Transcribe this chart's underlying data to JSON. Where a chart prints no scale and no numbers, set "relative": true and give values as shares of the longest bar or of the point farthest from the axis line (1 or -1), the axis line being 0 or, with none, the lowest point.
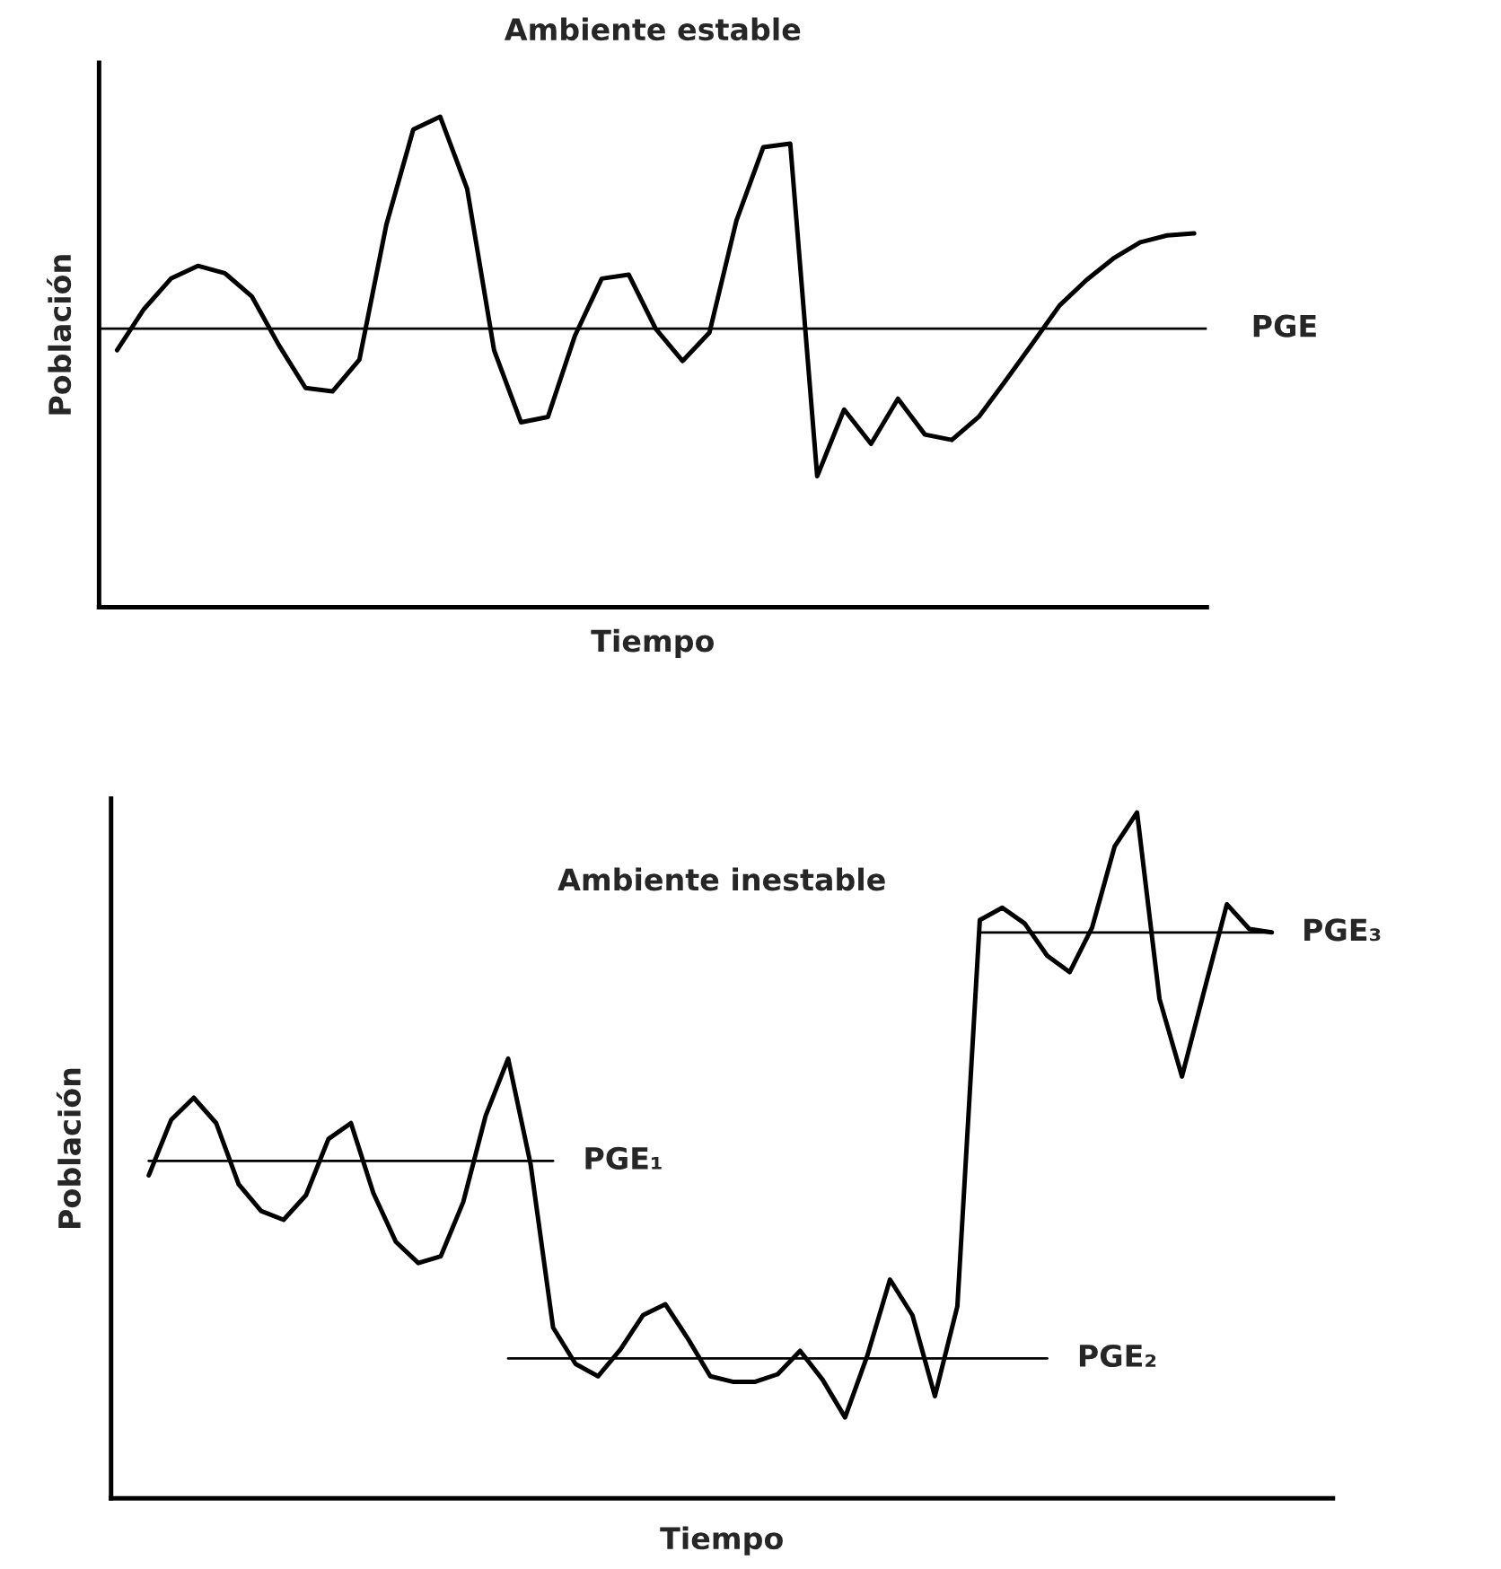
{
  "chart_data": [
    {
      "type": "line",
      "title": "Ambiente estable",
      "xlabel": "Tiempo",
      "ylabel": "Población",
      "relative": true,
      "legend": false,
      "categories": [
        null,
        null,
        null,
        null,
        null,
        null,
        null,
        null,
        null,
        null,
        null,
        null,
        null,
        null,
        null,
        null,
        null,
        null,
        null,
        null,
        null,
        null,
        null,
        null,
        null,
        null,
        null,
        null,
        null,
        null,
        null,
        null,
        null,
        null,
        null,
        null,
        null,
        null,
        null,
        null,
        null
      ],
      "series": [
        {
          "color": "#000000",
          "values": [
            0.524,
            0.608,
            0.67,
            0.696,
            0.681,
            0.634,
            0.535,
            0.447,
            0.44,
            0.505,
            0.78,
            0.974,
            1.0,
            0.853,
            0.524,
            0.377,
            0.388,
            0.553,
            0.67,
            0.678,
            0.568,
            0.502,
            0.56,
            0.788,
            0.938,
            0.945,
            0.267,
            0.403,
            0.333,
            0.425,
            0.352,
            0.341,
            0.388,
            0.462,
            0.538,
            0.615,
            0.667,
            0.711,
            0.744,
            0.758,
            0.762
          ]
        }
      ],
      "ref_lines": [
        {
          "axis": "y",
          "value": 0.568,
          "label": "PGE",
          "color": "#000000"
        }
      ]
    },
    {
      "type": "line",
      "title": "Ambiente inestable",
      "xlabel": "Tiempo",
      "ylabel": "Población",
      "relative": true,
      "legend": false,
      "categories": [
        null,
        null,
        null,
        null,
        null,
        null,
        null,
        null,
        null,
        null,
        null,
        null,
        null,
        null,
        null,
        null,
        null,
        null,
        null,
        null,
        null,
        null,
        null,
        null,
        null,
        null,
        null,
        null,
        null,
        null,
        null,
        null,
        null,
        null,
        null,
        null,
        null,
        null,
        null,
        null,
        null,
        null,
        null,
        null,
        null,
        null,
        null,
        null,
        null,
        null,
        null
      ],
      "series": [
        {
          "color": "#000000",
          "values": [
            0.471,
            0.552,
            0.584,
            0.547,
            0.458,
            0.419,
            0.406,
            0.442,
            0.524,
            0.547,
            0.445,
            0.374,
            0.343,
            0.353,
            0.432,
            0.558,
            0.641,
            0.487,
            0.249,
            0.196,
            0.178,
            0.217,
            0.267,
            0.283,
            0.233,
            0.178,
            0.17,
            0.17,
            0.181,
            0.215,
            0.173,
            0.118,
            0.209,
            0.319,
            0.267,
            0.149,
            0.28,
            0.843,
            0.861,
            0.838,
            0.791,
            0.767,
            0.832,
            0.95,
            1.0,
            0.728,
            0.615,
            0.741,
            0.866,
            0.83,
            0.825
          ]
        },
        {
          "name": "PGE₁",
          "color": "#000000",
          "values": [
            0.492,
            0.492,
            0.492,
            0.492,
            0.492,
            0.492,
            0.492,
            0.492,
            0.492,
            0.492,
            0.492,
            0.492,
            0.492,
            0.492,
            0.492,
            0.492,
            0.492,
            0.492,
            0.492,
            null,
            null,
            null,
            null,
            null,
            null,
            null,
            null,
            null,
            null,
            null,
            null,
            null,
            null,
            null,
            null,
            null,
            null,
            null,
            null,
            null,
            null,
            null,
            null,
            null,
            null,
            null,
            null,
            null,
            null,
            null,
            null
          ]
        },
        {
          "name": "PGE₂",
          "color": "#000000",
          "values": [
            null,
            null,
            null,
            null,
            null,
            null,
            null,
            null,
            null,
            null,
            null,
            null,
            null,
            null,
            null,
            null,
            0.204,
            0.204,
            0.204,
            0.204,
            0.204,
            0.204,
            0.204,
            0.204,
            0.204,
            0.204,
            0.204,
            0.204,
            0.204,
            0.204,
            0.204,
            0.204,
            0.204,
            0.204,
            0.204,
            0.204,
            0.204,
            0.204,
            0.204,
            0.204,
            0.204,
            null,
            null,
            null,
            null,
            null,
            null,
            null,
            null,
            null,
            null
          ]
        },
        {
          "name": "PGE₃",
          "color": "#000000",
          "values": [
            null,
            null,
            null,
            null,
            null,
            null,
            null,
            null,
            null,
            null,
            null,
            null,
            null,
            null,
            null,
            null,
            null,
            null,
            null,
            null,
            null,
            null,
            null,
            null,
            null,
            null,
            null,
            null,
            null,
            null,
            null,
            null,
            null,
            null,
            null,
            null,
            null,
            0.825,
            0.825,
            0.825,
            0.825,
            0.825,
            0.825,
            0.825,
            0.825,
            0.825,
            0.825,
            0.825,
            0.825,
            0.825,
            0.825
          ]
        }
      ]
    }
  ]
}
